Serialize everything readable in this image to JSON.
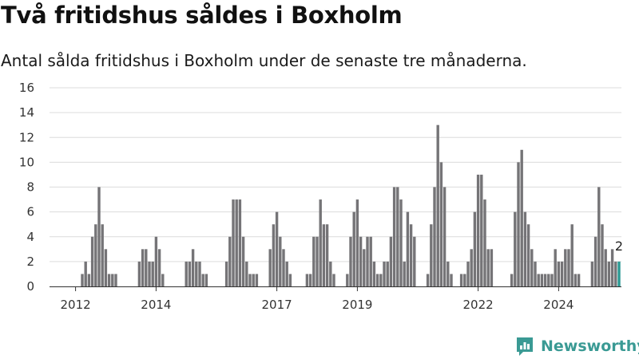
{
  "title": "Två fritidshus såldes i Boxholm",
  "subtitle": "Antal sålda fritidshus i Boxholm under de senaste tre månaderna.",
  "brand": "Newsworthy",
  "colors": {
    "bar": "#757477",
    "highlight": "#2b9a93",
    "grid": "#dcdcdc",
    "brand": "#3a9a94"
  },
  "chart_data": {
    "type": "bar",
    "ylim": [
      0,
      16
    ],
    "y_ticks": [
      0,
      2,
      4,
      6,
      8,
      10,
      12,
      14,
      16
    ],
    "x_ticks": [
      {
        "label": "2012",
        "index": 7
      },
      {
        "label": "2014",
        "index": 31
      },
      {
        "label": "2017",
        "index": 67
      },
      {
        "label": "2019",
        "index": 91
      },
      {
        "label": "2022",
        "index": 127
      },
      {
        "label": "2024",
        "index": 151
      }
    ],
    "grid": true,
    "values": [
      0,
      0,
      0,
      0,
      0,
      0,
      0,
      0,
      0,
      1,
      2,
      1,
      4,
      5,
      8,
      5,
      3,
      1,
      1,
      1,
      0,
      0,
      0,
      0,
      0,
      0,
      2,
      3,
      3,
      2,
      2,
      4,
      3,
      1,
      0,
      0,
      0,
      0,
      0,
      0,
      2,
      2,
      3,
      2,
      2,
      1,
      1,
      0,
      0,
      0,
      0,
      0,
      2,
      4,
      7,
      7,
      7,
      4,
      2,
      1,
      1,
      1,
      0,
      0,
      0,
      3,
      5,
      6,
      4,
      3,
      2,
      1,
      0,
      0,
      0,
      0,
      1,
      1,
      4,
      4,
      7,
      5,
      5,
      2,
      1,
      0,
      0,
      0,
      1,
      4,
      6,
      7,
      4,
      3,
      4,
      4,
      2,
      1,
      1,
      2,
      2,
      4,
      8,
      8,
      7,
      2,
      6,
      5,
      4,
      0,
      0,
      0,
      1,
      5,
      8,
      13,
      10,
      8,
      2,
      1,
      0,
      0,
      1,
      1,
      2,
      3,
      6,
      9,
      9,
      7,
      3,
      3,
      0,
      0,
      0,
      0,
      0,
      1,
      6,
      10,
      11,
      6,
      5,
      3,
      2,
      1,
      1,
      1,
      1,
      1,
      3,
      2,
      2,
      3,
      3,
      5,
      1,
      1,
      0,
      0,
      0,
      2,
      4,
      8,
      5,
      3,
      2,
      3,
      2,
      2
    ],
    "highlight_last": true,
    "annotations": [
      {
        "index": 169,
        "text": "2"
      }
    ]
  }
}
